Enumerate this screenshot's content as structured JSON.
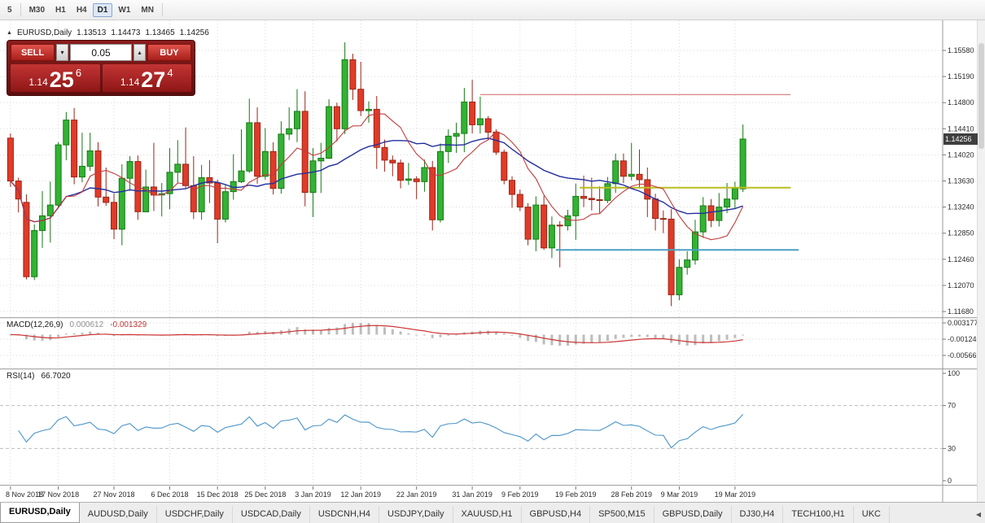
{
  "colors": {
    "up_fill": "#33b233",
    "up_stroke": "#157a15",
    "down_fill": "#e03b28",
    "down_stroke": "#9c2517",
    "ma_slow": "#232f9e",
    "ma_fast": "#c23b3b",
    "hist": "#bdbdbd",
    "signal": "#cc3434",
    "rsi": "#4b94c9",
    "grid": "#dadada",
    "panel_bg": "#6b1212",
    "badge_bg": "#3f3f3f"
  },
  "toolbar": {
    "timeframes": [
      "5",
      "M30",
      "H1",
      "H4",
      "D1",
      "W1",
      "MN"
    ],
    "active": "D1"
  },
  "chart_header": {
    "collapse": "▲",
    "symbol": "EURUSD,Daily",
    "open": "1.13513",
    "high": "1.14473",
    "low": "1.13465",
    "close": "1.14256"
  },
  "one_click": {
    "sell_label": "SELL",
    "buy_label": "BUY",
    "volume": "0.05",
    "spin_down_icon": "▾",
    "spin_up_icon": "▴",
    "sell_price": {
      "big_figure": "1.14",
      "pips": "25",
      "point": "6"
    },
    "buy_price": {
      "big_figure": "1.14",
      "pips": "27",
      "point": "4"
    }
  },
  "price_badge": "1.14256",
  "chart_data": {
    "type": "candlestick",
    "title": "EURUSD,Daily",
    "ylim": [
      1.1168,
      1.1558
    ],
    "columns": [
      "open",
      "high",
      "low",
      "close"
    ],
    "candles": [
      [
        1.1427,
        1.1434,
        1.1354,
        1.1363
      ],
      [
        1.1363,
        1.1368,
        1.1316,
        1.1336
      ],
      [
        1.1331,
        1.1343,
        1.1216,
        1.122
      ],
      [
        1.122,
        1.1298,
        1.1215,
        1.1289
      ],
      [
        1.1289,
        1.1348,
        1.1263,
        1.1311
      ],
      [
        1.1311,
        1.1362,
        1.1271,
        1.1327
      ],
      [
        1.1327,
        1.1421,
        1.1322,
        1.1417
      ],
      [
        1.1417,
        1.1466,
        1.1394,
        1.1454
      ],
      [
        1.1454,
        1.1472,
        1.1358,
        1.1369
      ],
      [
        1.1369,
        1.1435,
        1.1361,
        1.1385
      ],
      [
        1.1385,
        1.1435,
        1.1378,
        1.1408
      ],
      [
        1.1408,
        1.1421,
        1.1325,
        1.1339
      ],
      [
        1.1339,
        1.1383,
        1.1326,
        1.1331
      ],
      [
        1.1331,
        1.1344,
        1.1276,
        1.1291
      ],
      [
        1.1291,
        1.1388,
        1.1267,
        1.1367
      ],
      [
        1.1367,
        1.14,
        1.1348,
        1.1392
      ],
      [
        1.1392,
        1.1401,
        1.1305,
        1.1317
      ],
      [
        1.1317,
        1.138,
        1.1317,
        1.1354
      ],
      [
        1.1354,
        1.142,
        1.1318,
        1.1342
      ],
      [
        1.1342,
        1.136,
        1.131,
        1.1344
      ],
      [
        1.1344,
        1.1412,
        1.1321,
        1.1376
      ],
      [
        1.1376,
        1.1424,
        1.136,
        1.1388
      ],
      [
        1.1388,
        1.1443,
        1.1351,
        1.1356
      ],
      [
        1.1356,
        1.14,
        1.1306,
        1.1317
      ],
      [
        1.1317,
        1.1387,
        1.1305,
        1.1368
      ],
      [
        1.1368,
        1.1394,
        1.133,
        1.136
      ],
      [
        1.136,
        1.1365,
        1.127,
        1.1306
      ],
      [
        1.1306,
        1.1358,
        1.1301,
        1.1347
      ],
      [
        1.1347,
        1.1403,
        1.1335,
        1.1362
      ],
      [
        1.1362,
        1.144,
        1.136,
        1.1378
      ],
      [
        1.1378,
        1.1486,
        1.1375,
        1.145
      ],
      [
        1.145,
        1.1473,
        1.1359,
        1.137
      ],
      [
        1.137,
        1.1442,
        1.1365,
        1.1407
      ],
      [
        1.1407,
        1.1421,
        1.1343,
        1.1352
      ],
      [
        1.1352,
        1.1452,
        1.1344,
        1.1433
      ],
      [
        1.1433,
        1.1473,
        1.1424,
        1.1441
      ],
      [
        1.1441,
        1.15,
        1.1421,
        1.1467
      ],
      [
        1.1467,
        1.1497,
        1.1325,
        1.1346
      ],
      [
        1.1346,
        1.1412,
        1.1309,
        1.1393
      ],
      [
        1.1393,
        1.142,
        1.1345,
        1.1397
      ],
      [
        1.1397,
        1.1485,
        1.1396,
        1.1474
      ],
      [
        1.1474,
        1.148,
        1.1422,
        1.1441
      ],
      [
        1.1441,
        1.157,
        1.1433,
        1.1544
      ],
      [
        1.1544,
        1.1553,
        1.1484,
        1.15
      ],
      [
        1.15,
        1.1541,
        1.146,
        1.1468
      ],
      [
        1.1468,
        1.1482,
        1.145,
        1.147
      ],
      [
        1.147,
        1.149,
        1.1381,
        1.1413
      ],
      [
        1.1413,
        1.1425,
        1.1377,
        1.1394
      ],
      [
        1.1394,
        1.1401,
        1.137,
        1.139
      ],
      [
        1.139,
        1.1395,
        1.1352,
        1.1364
      ],
      [
        1.1364,
        1.139,
        1.1357,
        1.1366
      ],
      [
        1.1366,
        1.137,
        1.1336,
        1.1362
      ],
      [
        1.1362,
        1.1395,
        1.1347,
        1.1383
      ],
      [
        1.1383,
        1.1393,
        1.1289,
        1.1305
      ],
      [
        1.1305,
        1.1419,
        1.1301,
        1.1407
      ],
      [
        1.1407,
        1.144,
        1.139,
        1.143
      ],
      [
        1.143,
        1.145,
        1.1405,
        1.1434
      ],
      [
        1.1434,
        1.1502,
        1.1406,
        1.1481
      ],
      [
        1.1481,
        1.1514,
        1.1434,
        1.1447
      ],
      [
        1.1447,
        1.1489,
        1.1434,
        1.1456
      ],
      [
        1.1456,
        1.146,
        1.1424,
        1.1436
      ],
      [
        1.1436,
        1.144,
        1.1402,
        1.1406
      ],
      [
        1.1406,
        1.141,
        1.1358,
        1.1364
      ],
      [
        1.1364,
        1.137,
        1.1323,
        1.1343
      ],
      [
        1.1343,
        1.135,
        1.1318,
        1.1324
      ],
      [
        1.1324,
        1.133,
        1.1267,
        1.1276
      ],
      [
        1.1276,
        1.134,
        1.1258,
        1.1327
      ],
      [
        1.1327,
        1.1341,
        1.126,
        1.1263
      ],
      [
        1.1263,
        1.131,
        1.1248,
        1.1297
      ],
      [
        1.1297,
        1.1303,
        1.1234,
        1.1296
      ],
      [
        1.1296,
        1.132,
        1.1289,
        1.1311
      ],
      [
        1.1311,
        1.1359,
        1.1275,
        1.134
      ],
      [
        1.134,
        1.1371,
        1.1324,
        1.1337
      ],
      [
        1.1337,
        1.1368,
        1.1319,
        1.1335
      ],
      [
        1.1335,
        1.1355,
        1.1315,
        1.1334
      ],
      [
        1.1334,
        1.1369,
        1.133,
        1.1359
      ],
      [
        1.1359,
        1.1404,
        1.1345,
        1.1393
      ],
      [
        1.1393,
        1.1404,
        1.136,
        1.137
      ],
      [
        1.137,
        1.142,
        1.1364,
        1.1373
      ],
      [
        1.1373,
        1.141,
        1.1352,
        1.1365
      ],
      [
        1.1365,
        1.1383,
        1.1309,
        1.1336
      ],
      [
        1.1336,
        1.1344,
        1.1289,
        1.1307
      ],
      [
        1.1307,
        1.1319,
        1.1285,
        1.1306
      ],
      [
        1.1306,
        1.1321,
        1.1176,
        1.1193
      ],
      [
        1.1193,
        1.1246,
        1.1185,
        1.1234
      ],
      [
        1.1234,
        1.1258,
        1.1223,
        1.1245
      ],
      [
        1.1245,
        1.1305,
        1.1238,
        1.1287
      ],
      [
        1.1287,
        1.1339,
        1.1278,
        1.1326
      ],
      [
        1.1326,
        1.1336,
        1.1294,
        1.1304
      ],
      [
        1.1304,
        1.1345,
        1.1295,
        1.1324
      ],
      [
        1.1324,
        1.136,
        1.1315,
        1.1336
      ],
      [
        1.1336,
        1.1362,
        1.1321,
        1.1352
      ],
      [
        1.13513,
        1.14473,
        1.13465,
        1.14256
      ]
    ],
    "price_ticks": [
      "1.15580",
      "1.15190",
      "1.14800",
      "1.14410",
      "1.14020",
      "1.13630",
      "1.13240",
      "1.12850",
      "1.12460",
      "1.12070",
      "1.11680"
    ],
    "date_ticks": [
      {
        "i": 0,
        "label": "8 Nov 2018"
      },
      {
        "i": 6,
        "label": "17 Nov 2018"
      },
      {
        "i": 13,
        "label": "27 Nov 2018"
      },
      {
        "i": 20,
        "label": "6 Dec 2018"
      },
      {
        "i": 26,
        "label": "15 Dec 2018"
      },
      {
        "i": 32,
        "label": "25 Dec 2018"
      },
      {
        "i": 38,
        "label": "3 Jan 2019"
      },
      {
        "i": 44,
        "label": "12 Jan 2019"
      },
      {
        "i": 51,
        "label": "22 Jan 2019"
      },
      {
        "i": 58,
        "label": "31 Jan 2019"
      },
      {
        "i": 64,
        "label": "9 Feb 2019"
      },
      {
        "i": 71,
        "label": "19 Feb 2019"
      },
      {
        "i": 78,
        "label": "28 Feb 2019"
      },
      {
        "i": 84,
        "label": "9 Mar 2019"
      },
      {
        "i": 91,
        "label": "19 Mar 2019"
      }
    ],
    "levels": [
      {
        "name": "resistance-line",
        "price": 1.1492,
        "color": "#d06060",
        "width": 1,
        "from_index": 59,
        "to_index": 98
      },
      {
        "name": "breakout-line",
        "price": 1.1353,
        "color": "#b9bd1f",
        "width": 2,
        "from_index": 71.5,
        "to_index": 98
      },
      {
        "name": "support-line",
        "price": 1.126,
        "color": "#4b9fc6",
        "width": 2,
        "from_index": 68.5,
        "to_index": 99
      }
    ],
    "indicators": {
      "macd": {
        "label": "MACD(12,26,9)",
        "value_main": "0.000612",
        "value_signal": "-0.001329",
        "axis": [
          "0.003177",
          "-0.001245",
          "-0.005667"
        ]
      },
      "rsi": {
        "label": "RSI(14)",
        "value": "66.7020",
        "axis": [
          "100",
          "70",
          "30",
          "0"
        ],
        "levels": [
          70,
          30
        ]
      }
    }
  },
  "tabs": {
    "scroll_left_icon": "◀",
    "items": [
      {
        "label": "EURUSD,Daily",
        "active": true
      },
      {
        "label": "AUDUSD,Daily",
        "active": false
      },
      {
        "label": "USDCHF,Daily",
        "active": false
      },
      {
        "label": "USDCAD,Daily",
        "active": false
      },
      {
        "label": "USDCNH,H4",
        "active": false
      },
      {
        "label": "USDJPY,Daily",
        "active": false
      },
      {
        "label": "XAUUSD,H1",
        "active": false
      },
      {
        "label": "GBPUSD,H4",
        "active": false
      },
      {
        "label": "SP500,M15",
        "active": false
      },
      {
        "label": "GBPUSD,Daily",
        "active": false
      },
      {
        "label": "DJ30,H4",
        "active": false
      },
      {
        "label": "TECH100,H1",
        "active": false
      },
      {
        "label": "UKC",
        "active": false
      }
    ]
  }
}
